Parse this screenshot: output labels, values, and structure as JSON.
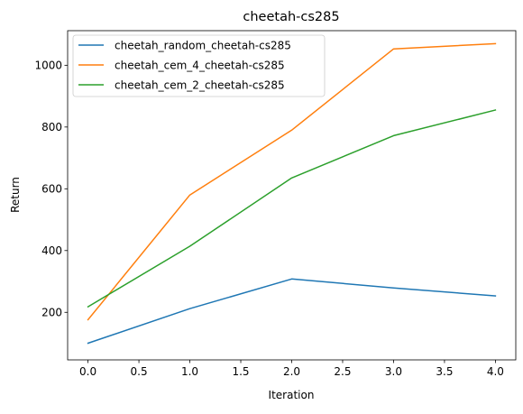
{
  "chart_data": {
    "type": "line",
    "title": "cheetah-cs285",
    "xlabel": "Iteration",
    "ylabel": "Return",
    "x": [
      0,
      1,
      2,
      3,
      4
    ],
    "xlim": [
      -0.2,
      4.2
    ],
    "ylim": [
      46,
      1112
    ],
    "x_ticks": [
      "0.0",
      "0.5",
      "1.0",
      "1.5",
      "2.0",
      "2.5",
      "3.0",
      "3.5",
      "4.0"
    ],
    "x_tick_values": [
      0,
      0.5,
      1,
      1.5,
      2,
      2.5,
      3,
      3.5,
      4
    ],
    "y_ticks": [
      "200",
      "400",
      "600",
      "800",
      "1000"
    ],
    "y_tick_values": [
      200,
      400,
      600,
      800,
      1000
    ],
    "grid": false,
    "legend_position": "top-left",
    "series": [
      {
        "name": "cheetah_random_cheetah-cs285",
        "color": "#1f77b4",
        "values": [
          100,
          212,
          308,
          279,
          253
        ]
      },
      {
        "name": "cheetah_cem_4_cheetah-cs285",
        "color": "#ff7f0e",
        "values": [
          176,
          580,
          790,
          1053,
          1070
        ]
      },
      {
        "name": "cheetah_cem_2_cheetah-cs285",
        "color": "#2ca02c",
        "values": [
          218,
          414,
          635,
          772,
          855
        ]
      }
    ]
  }
}
